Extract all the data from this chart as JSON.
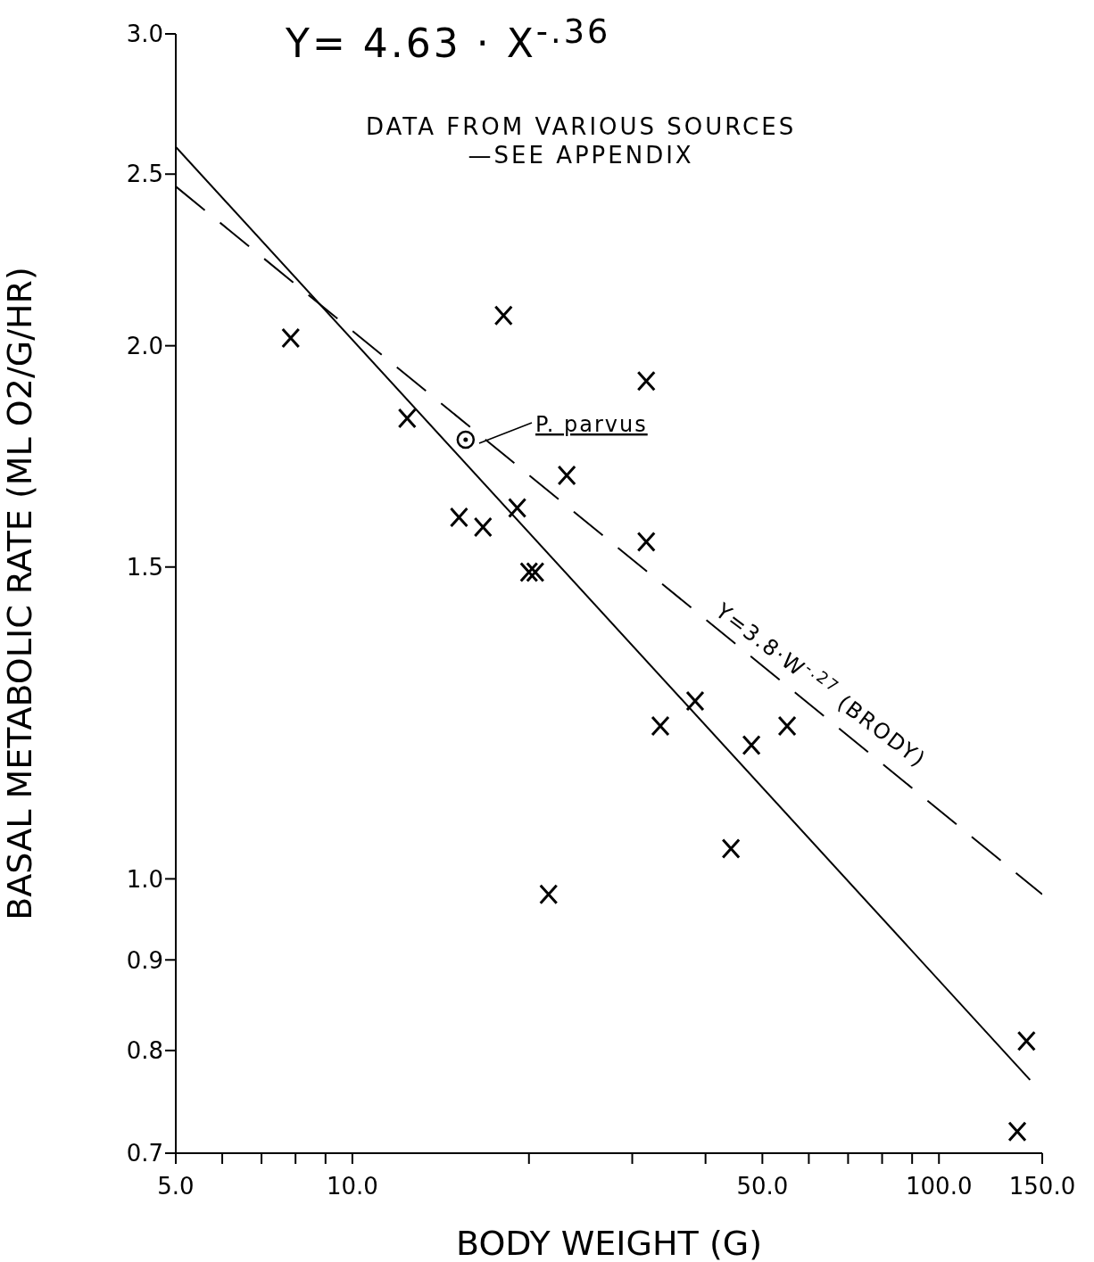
{
  "chart_data": {
    "type": "scatter",
    "title": "Y= 4.63 · X$^{-.36}$",
    "xlabel": "BODY WEIGHT (G)",
    "ylabel": "BASAL METABOLIC RATE (ML O2/G/HR)",
    "annotations": [
      "DATA FROM VARIOUS SOURCES\n—SEE APPENDIX",
      "P. parvus",
      "Y=3.8·W$^{-.27}$ (BRODY)"
    ],
    "log": "xy",
    "grid": false,
    "legend": false,
    "xlim": [
      5,
      150
    ],
    "ylim": [
      0.7,
      3.0
    ],
    "xticks": [
      {
        "value": 5,
        "label": "5.0"
      },
      {
        "value": 6,
        "label": null
      },
      {
        "value": 7,
        "label": null
      },
      {
        "value": 8,
        "label": null
      },
      {
        "value": 9,
        "label": null
      },
      {
        "value": 10,
        "label": "10.0"
      },
      {
        "value": 20,
        "label": null
      },
      {
        "value": 30,
        "label": null
      },
      {
        "value": 40,
        "label": null
      },
      {
        "value": 50,
        "label": "50.0"
      },
      {
        "value": 60,
        "label": null
      },
      {
        "value": 70,
        "label": null
      },
      {
        "value": 80,
        "label": null
      },
      {
        "value": 90,
        "label": null
      },
      {
        "value": 100,
        "label": "100.0"
      },
      {
        "value": 150,
        "label": "150.0"
      }
    ],
    "yticks": [
      {
        "value": 0.7,
        "label": "0.7"
      },
      {
        "value": 0.8,
        "label": "0.8"
      },
      {
        "value": 0.9,
        "label": "0.9"
      },
      {
        "value": 1.0,
        "label": "1.0"
      },
      {
        "value": 1.5,
        "label": "1.5"
      },
      {
        "value": 2.0,
        "label": "2.0"
      },
      {
        "value": 2.5,
        "label": "2.5"
      },
      {
        "value": 3.0,
        "label": "3.0"
      }
    ],
    "series": [
      {
        "marker": "cross",
        "color": "#000000",
        "x": [
          7.85,
          12.4,
          18.1,
          31.7,
          15.2,
          16.7,
          19.1,
          23.2,
          20.0,
          20.5,
          31.7,
          38.4,
          33.5,
          47.9,
          55.1,
          44.2,
          21.6,
          141,
          136
        ],
        "values": [
          2.02,
          1.82,
          2.08,
          1.91,
          1.6,
          1.58,
          1.62,
          1.69,
          1.49,
          1.49,
          1.55,
          1.26,
          1.22,
          1.19,
          1.22,
          1.04,
          0.98,
          0.81,
          0.72
        ]
      },
      {
        "marker": "circle",
        "color": "#000000",
        "x": [
          15.6
        ],
        "values": [
          1.77
        ]
      },
      {
        "type": "line",
        "line_style": "solid",
        "marker": "none",
        "color": "#000000",
        "x": [
          5,
          143
        ],
        "values": [
          2.59,
          0.77
        ]
      },
      {
        "type": "line",
        "line_style": "dashed",
        "marker": "none",
        "color": "#000000",
        "x": [
          5,
          150
        ],
        "values": [
          2.46,
          0.98
        ]
      }
    ]
  }
}
